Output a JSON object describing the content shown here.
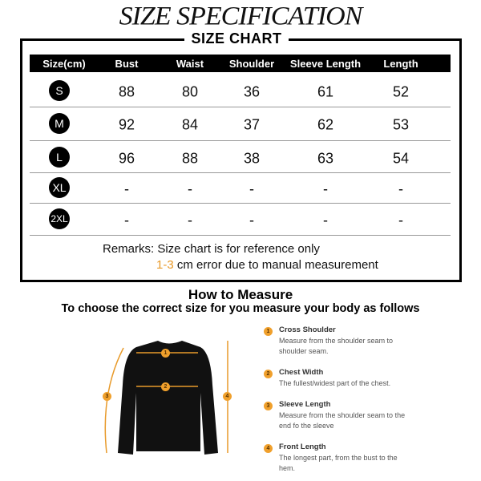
{
  "title": "SIZE SPECIFICATION",
  "chart_label": "SIZE CHART",
  "table": {
    "headers": [
      "Size(cm)",
      "Bust",
      "Waist",
      "Shoulder",
      "Sleeve Length",
      "Length"
    ],
    "rows": [
      {
        "size": "S",
        "values": [
          "88",
          "80",
          "36",
          "61",
          "52"
        ]
      },
      {
        "size": "M",
        "values": [
          "92",
          "84",
          "37",
          "62",
          "53"
        ]
      },
      {
        "size": "L",
        "values": [
          "96",
          "88",
          "38",
          "63",
          "54"
        ]
      },
      {
        "size": "XL",
        "values": [
          "-",
          "-",
          "-",
          "-",
          "-"
        ]
      },
      {
        "size": "2XL",
        "values": [
          "-",
          "-",
          "-",
          "-",
          "-"
        ]
      }
    ]
  },
  "remarks": {
    "line1": "Remarks: Size chart is for reference only",
    "range": "1-3",
    "line2": " cm error due to manual measurement"
  },
  "how_to": {
    "title": "How to Measure",
    "subtitle": "To choose the correct size for you measure your body as follows",
    "items": [
      {
        "num": "1",
        "title": "Cross Shoulder",
        "desc": "Measure from the shoulder seam to shoulder seam."
      },
      {
        "num": "2",
        "title": "Chest Width",
        "desc": "The fullest/widest part of the chest."
      },
      {
        "num": "3",
        "title": "Sleeve Length",
        "desc": "Measure from the shoulder seam to the end fo the sleeve"
      },
      {
        "num": "4",
        "title": "Front Length",
        "desc": "The longest part, from the bust to the hem."
      }
    ]
  },
  "colors": {
    "accent": "#f0a02c",
    "table_header": "#000000"
  }
}
